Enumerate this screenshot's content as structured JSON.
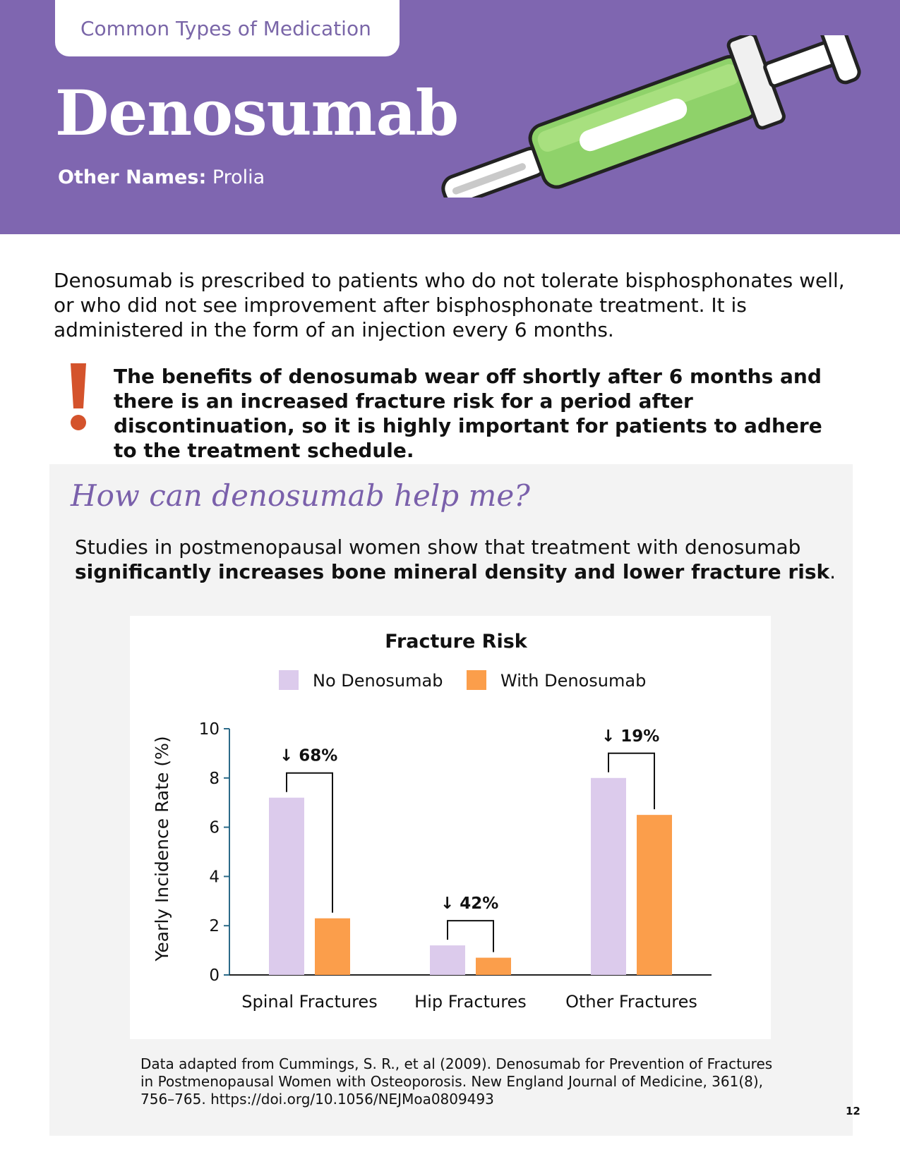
{
  "header": {
    "category_tab": "Common Types of Medication",
    "title": "Denosumab",
    "other_names_label": "Other Names:",
    "other_names_value": "Prolia"
  },
  "intro": "Denosumab is prescribed to patients who do not tolerate bisphosphonates well, or who did not see improvement after bisphosphonate treatment. It is administered in the form of an injection every 6 months.",
  "warning": {
    "icon": "exclamation-icon",
    "text": "The benefits of denosumab wear off shortly after 6 months and there is an increased fracture risk for a period after discontinuation, so it is highly important for patients to adhere to the treatment schedule."
  },
  "panel": {
    "heading": "How can denosumab help me?",
    "study_text": "Studies in postmenopausal women show that treatment with denosumab",
    "study_bold": "significantly increases bone mineral density and lower fracture risk",
    "study_end": ".",
    "source": "Data adapted from Cummings, S. R., et al (2009). Denosumab for Prevention of Fractures in Postmenopausal Women with Osteoporosis. New England Journal of Medicine, 361(8), 756–765. https://doi.org/10.1056/NEJMoa0809493"
  },
  "page_number": "12",
  "colors": {
    "header_bg": "#7f66b0",
    "no_denosumab": "#dccbec",
    "with_denosumab": "#fb9e4b",
    "alert": "#d4532c"
  },
  "chart_data": {
    "type": "bar",
    "title": "Fracture Risk",
    "ylabel": "Yearly Incidence Rate (%)",
    "xlabel": "",
    "ylim": [
      0,
      10
    ],
    "yticks": [
      0,
      2,
      4,
      6,
      8,
      10
    ],
    "categories": [
      "Spinal Fractures",
      "Hip Fractures",
      "Other Fractures"
    ],
    "series": [
      {
        "name": "No Denosumab",
        "values": [
          7.2,
          1.2,
          8.0
        ]
      },
      {
        "name": "With Denosumab",
        "values": [
          2.3,
          0.7,
          6.5
        ]
      }
    ],
    "annotations": [
      "68%",
      "42%",
      "19%"
    ],
    "annotation_arrow": "↓",
    "legend_position": "top"
  }
}
